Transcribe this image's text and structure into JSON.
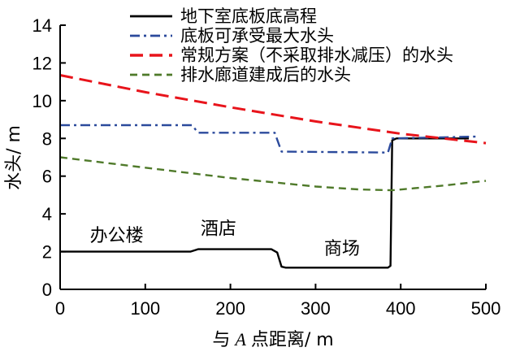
{
  "chart_data": {
    "type": "line",
    "title": "",
    "xlabel_pre": "与",
    "xlabel_var": "A",
    "xlabel_post": "点距离/ m",
    "ylabel": "水头/ m",
    "xlim": [
      0,
      500
    ],
    "ylim": [
      0,
      14
    ],
    "xticks": [
      0,
      100,
      200,
      300,
      400,
      500
    ],
    "yticks": [
      0,
      2,
      4,
      6,
      8,
      10,
      12,
      14
    ],
    "legend_position": "top-right",
    "series": [
      {
        "name": "地下室底板底高程",
        "color": "#000000",
        "style": "solid",
        "points": [
          [
            0,
            2.0
          ],
          [
            153,
            2.0
          ],
          [
            162,
            2.13
          ],
          [
            248,
            2.13
          ],
          [
            255,
            1.95
          ],
          [
            260,
            1.2
          ],
          [
            265,
            1.15
          ],
          [
            385,
            1.15
          ],
          [
            388,
            1.25
          ],
          [
            390,
            7.9
          ],
          [
            395,
            8.0
          ],
          [
            480,
            8.0
          ]
        ]
      },
      {
        "name": "底板可承受最大水头",
        "color": "#2b4a9c",
        "style": "dashdot",
        "points": [
          [
            0,
            8.7
          ],
          [
            155,
            8.7
          ],
          [
            162,
            8.3
          ],
          [
            252,
            8.3
          ],
          [
            260,
            7.3
          ],
          [
            385,
            7.25
          ],
          [
            390,
            8.0
          ],
          [
            490,
            8.1
          ]
        ]
      },
      {
        "name": "常规方案（不采取排水减压）的水头",
        "color": "#e8141b",
        "style": "dashed",
        "points": [
          [
            0,
            11.35
          ],
          [
            100,
            10.45
          ],
          [
            200,
            9.65
          ],
          [
            300,
            8.9
          ],
          [
            400,
            8.25
          ],
          [
            500,
            7.75
          ]
        ]
      },
      {
        "name": "排水廊道建成后的水头",
        "color": "#4f7a2a",
        "style": "dashed-short",
        "points": [
          [
            0,
            7.0
          ],
          [
            100,
            6.45
          ],
          [
            200,
            5.9
          ],
          [
            300,
            5.45
          ],
          [
            350,
            5.3
          ],
          [
            390,
            5.25
          ],
          [
            450,
            5.5
          ],
          [
            500,
            5.75
          ]
        ]
      }
    ],
    "annotations": [
      {
        "text": "办公楼",
        "x": 35,
        "y": 2.55
      },
      {
        "text": "酒店",
        "x": 165,
        "y": 2.9
      },
      {
        "text": "商场",
        "x": 310,
        "y": 1.85
      }
    ]
  }
}
